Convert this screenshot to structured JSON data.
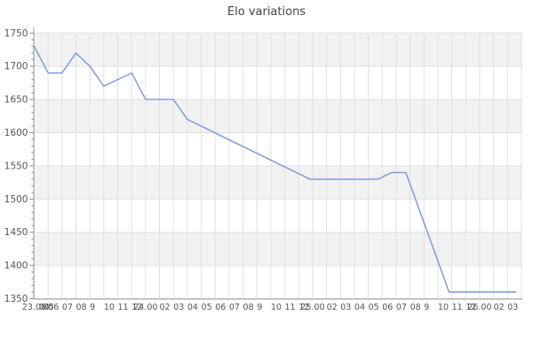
{
  "title": "Elo variations",
  "chart_data": {
    "type": "line",
    "title": "Elo variations",
    "xlabel": "",
    "ylabel": "",
    "grid": true,
    "legend": "none",
    "y_axis": {
      "min": 1350,
      "max": 1750,
      "major_step": 50,
      "minor_step": 10,
      "labels": [
        "1750",
        "1700",
        "1650",
        "1600",
        "1550",
        "1500",
        "1450",
        "1400",
        "1350"
      ]
    },
    "x_axis": {
      "num_ticks": 36,
      "labels": [
        {
          "tick": 0,
          "text": "23.00",
          "align": "center"
        },
        {
          "tick": 0.34,
          "text": "04",
          "align": "left"
        },
        {
          "tick": 0.66,
          "text": "05",
          "align": "left"
        },
        {
          "tick": 1,
          "text": "06",
          "align": "left"
        },
        {
          "tick": 2,
          "text": "07",
          "align": "left"
        },
        {
          "tick": 3,
          "text": "08",
          "align": "left"
        },
        {
          "tick": 4,
          "text": "9",
          "align": "left"
        },
        {
          "tick": 5,
          "text": "10",
          "align": "left"
        },
        {
          "tick": 6,
          "text": "11",
          "align": "left"
        },
        {
          "tick": 7,
          "text": "12",
          "align": "left"
        },
        {
          "tick": 8,
          "text": "24.00",
          "align": "center"
        },
        {
          "tick": 9,
          "text": "02",
          "align": "left"
        },
        {
          "tick": 10,
          "text": "03",
          "align": "left"
        },
        {
          "tick": 11,
          "text": "04",
          "align": "left"
        },
        {
          "tick": 12,
          "text": "05",
          "align": "left"
        },
        {
          "tick": 13,
          "text": "06",
          "align": "left"
        },
        {
          "tick": 14,
          "text": "07",
          "align": "left"
        },
        {
          "tick": 15,
          "text": "08",
          "align": "left"
        },
        {
          "tick": 16,
          "text": "9",
          "align": "left"
        },
        {
          "tick": 17,
          "text": "10",
          "align": "left"
        },
        {
          "tick": 18,
          "text": "11",
          "align": "left"
        },
        {
          "tick": 19,
          "text": "12",
          "align": "left"
        },
        {
          "tick": 20,
          "text": "25.00",
          "align": "center"
        },
        {
          "tick": 21,
          "text": "02",
          "align": "left"
        },
        {
          "tick": 22,
          "text": "03",
          "align": "left"
        },
        {
          "tick": 23,
          "text": "04",
          "align": "left"
        },
        {
          "tick": 24,
          "text": "05",
          "align": "left"
        },
        {
          "tick": 25,
          "text": "06",
          "align": "left"
        },
        {
          "tick": 26,
          "text": "07",
          "align": "left"
        },
        {
          "tick": 27,
          "text": "08",
          "align": "left"
        },
        {
          "tick": 28,
          "text": "9",
          "align": "left"
        },
        {
          "tick": 29,
          "text": "10",
          "align": "left"
        },
        {
          "tick": 30,
          "text": "11",
          "align": "left"
        },
        {
          "tick": 31,
          "text": "12",
          "align": "left"
        },
        {
          "tick": 32,
          "text": "26.00",
          "align": "center"
        },
        {
          "tick": 33,
          "text": "02",
          "align": "left"
        },
        {
          "tick": 34,
          "text": "03",
          "align": "left"
        }
      ]
    },
    "series": [
      {
        "name": "Elo",
        "color": "#7896dc",
        "points": [
          [
            0,
            1730
          ],
          [
            1,
            1690
          ],
          [
            2,
            1690
          ],
          [
            3,
            1720
          ],
          [
            4,
            1700
          ],
          [
            5,
            1670
          ],
          [
            7,
            1690
          ],
          [
            8,
            1650
          ],
          [
            10,
            1650
          ],
          [
            11,
            1620
          ],
          [
            19.8,
            1530
          ],
          [
            24.7,
            1530
          ],
          [
            25.7,
            1540
          ],
          [
            26.7,
            1540
          ],
          [
            29.8,
            1360
          ],
          [
            34.6,
            1360
          ]
        ]
      }
    ],
    "colors": {
      "band": "#f2f2f2",
      "plot_bg": "#ffffff",
      "grid": "#e0e0e0",
      "axis": "#999999",
      "tick": "#888888",
      "tick_label": "#555555",
      "title": "#444444",
      "line": "#7896dc"
    }
  }
}
